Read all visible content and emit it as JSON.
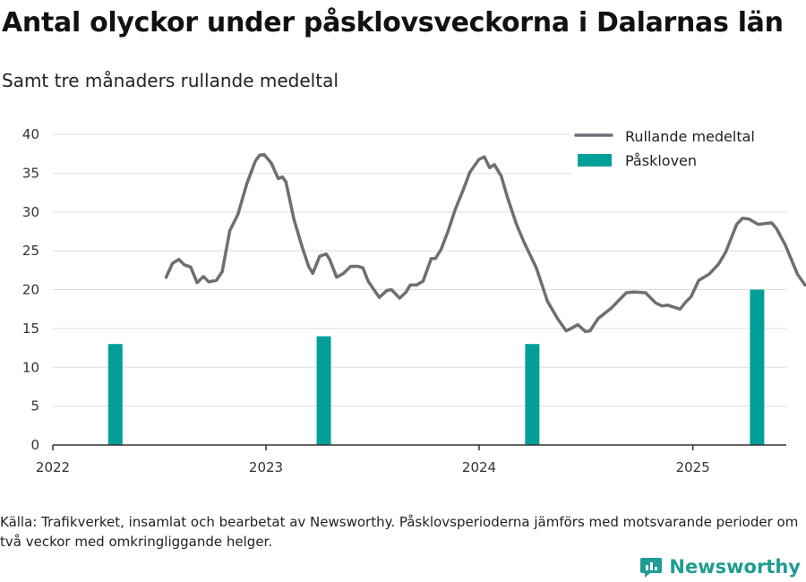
{
  "title": "Antal olyckor under påsklovsveckorna i Dalarnas län",
  "subtitle": "Samt tre månaders rullande medeltal",
  "source": "Källa: Trafikverket, insamlat och bearbetat av Newsworthy. Påsklovsperioderna jämförs med motsvarande perioder om två veckor med omkringliggande helger.",
  "brand": "Newsworthy",
  "colors": {
    "line": "#6e6e75",
    "bar": "#00a099",
    "brand": "#1f9c93",
    "grid": "#dddddd",
    "axis": "#333333"
  },
  "chart_data": {
    "type": "bar+line",
    "ylim": [
      0,
      40
    ],
    "yticks": [
      0,
      5,
      10,
      15,
      20,
      25,
      30,
      35,
      40
    ],
    "xlim": [
      "2022-01-01",
      "2025-06-10"
    ],
    "xticks": [
      {
        "label": "2022",
        "date": "2022-01-01"
      },
      {
        "label": "2023",
        "date": "2023-01-01"
      },
      {
        "label": "2024",
        "date": "2024-01-01"
      },
      {
        "label": "2025",
        "date": "2025-01-01"
      }
    ],
    "grid": true,
    "legend_position": "top-right",
    "series": [
      {
        "name": "Rullande medeltal",
        "type": "line",
        "points": [
          [
            "2022-07-14",
            21.6
          ],
          [
            "2022-07-25",
            23.4
          ],
          [
            "2022-08-05",
            23.9
          ],
          [
            "2022-08-14",
            23.2
          ],
          [
            "2022-08-25",
            22.9
          ],
          [
            "2022-09-05",
            20.9
          ],
          [
            "2022-09-16",
            21.7
          ],
          [
            "2022-09-25",
            21.0
          ],
          [
            "2022-10-08",
            21.2
          ],
          [
            "2022-10-18",
            22.3
          ],
          [
            "2022-10-31",
            27.6
          ],
          [
            "2022-11-14",
            29.7
          ],
          [
            "2022-11-29",
            33.6
          ],
          [
            "2022-12-14",
            36.6
          ],
          [
            "2022-12-21",
            37.3
          ],
          [
            "2022-12-29",
            37.4
          ],
          [
            "2023-01-10",
            36.3
          ],
          [
            "2023-01-22",
            34.3
          ],
          [
            "2023-01-29",
            34.5
          ],
          [
            "2023-02-04",
            33.9
          ],
          [
            "2023-02-18",
            29.0
          ],
          [
            "2023-03-04",
            25.5
          ],
          [
            "2023-03-15",
            23.0
          ],
          [
            "2023-03-22",
            22.1
          ],
          [
            "2023-04-03",
            24.3
          ],
          [
            "2023-04-14",
            24.6
          ],
          [
            "2023-04-20",
            23.9
          ],
          [
            "2023-05-02",
            21.6
          ],
          [
            "2023-05-14",
            22.1
          ],
          [
            "2023-05-26",
            23.0
          ],
          [
            "2023-06-08",
            23.0
          ],
          [
            "2023-06-16",
            22.8
          ],
          [
            "2023-06-25",
            21.1
          ],
          [
            "2023-07-14",
            19.0
          ],
          [
            "2023-07-27",
            19.9
          ],
          [
            "2023-08-04",
            20.0
          ],
          [
            "2023-08-18",
            18.9
          ],
          [
            "2023-08-29",
            19.7
          ],
          [
            "2023-09-05",
            20.6
          ],
          [
            "2023-09-16",
            20.6
          ],
          [
            "2023-09-27",
            21.1
          ],
          [
            "2023-10-11",
            24.0
          ],
          [
            "2023-10-18",
            24.0
          ],
          [
            "2023-10-28",
            25.2
          ],
          [
            "2023-11-09",
            27.6
          ],
          [
            "2023-11-21",
            30.3
          ],
          [
            "2023-12-05",
            32.9
          ],
          [
            "2023-12-16",
            35.1
          ],
          [
            "2024-01-01",
            36.8
          ],
          [
            "2024-01-10",
            37.1
          ],
          [
            "2024-01-19",
            35.7
          ],
          [
            "2024-01-27",
            36.1
          ],
          [
            "2024-02-08",
            34.6
          ],
          [
            "2024-02-18",
            32.0
          ],
          [
            "2024-03-05",
            28.4
          ],
          [
            "2024-03-18",
            26.1
          ],
          [
            "2024-04-08",
            22.8
          ],
          [
            "2024-04-27",
            18.5
          ],
          [
            "2024-05-15",
            16.2
          ],
          [
            "2024-05-29",
            14.7
          ],
          [
            "2024-06-09",
            15.1
          ],
          [
            "2024-06-18",
            15.5
          ],
          [
            "2024-07-01",
            14.6
          ],
          [
            "2024-07-09",
            14.7
          ],
          [
            "2024-07-23",
            16.3
          ],
          [
            "2024-08-14",
            17.6
          ],
          [
            "2024-09-09",
            19.6
          ],
          [
            "2024-09-22",
            19.7
          ],
          [
            "2024-10-12",
            19.6
          ],
          [
            "2024-10-29",
            18.3
          ],
          [
            "2024-11-09",
            17.9
          ],
          [
            "2024-11-19",
            18.0
          ],
          [
            "2024-12-10",
            17.5
          ],
          [
            "2024-12-21",
            18.5
          ],
          [
            "2024-12-29",
            19.1
          ],
          [
            "2025-01-11",
            21.2
          ],
          [
            "2025-01-29",
            22.0
          ],
          [
            "2025-02-14",
            23.3
          ],
          [
            "2025-02-26",
            24.8
          ],
          [
            "2025-03-17",
            28.4
          ],
          [
            "2025-03-27",
            29.2
          ],
          [
            "2025-04-07",
            29.1
          ],
          [
            "2025-04-23",
            28.4
          ],
          [
            "2025-05-03",
            28.5
          ],
          [
            "2025-05-16",
            28.6
          ],
          [
            "2025-05-24",
            27.9
          ],
          [
            "2025-06-08",
            25.8
          ],
          [
            "2025-06-29",
            22.0
          ],
          [
            "2025-07-12",
            20.6
          ]
        ]
      },
      {
        "name": "Påskloven",
        "type": "bar",
        "points": [
          [
            "2022-04-18",
            13
          ],
          [
            "2023-04-10",
            14
          ],
          [
            "2024-04-01",
            13
          ],
          [
            "2025-04-21",
            20
          ]
        ]
      }
    ]
  }
}
